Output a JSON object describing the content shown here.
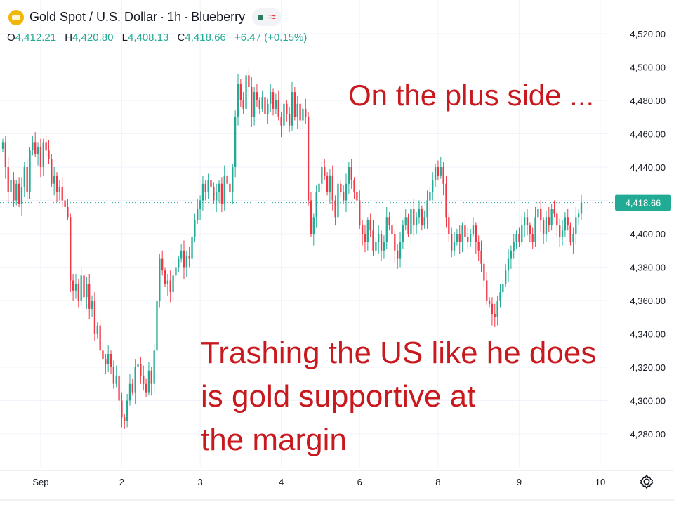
{
  "header": {
    "title_symbol": "Gold Spot / U.S. Dollar",
    "interval": "1h",
    "source": "Blueberry"
  },
  "ohlc": {
    "o_label": "O",
    "o": "4,412.21",
    "h_label": "H",
    "h": "4,420.80",
    "l_label": "L",
    "l": "4,408.13",
    "c_label": "C",
    "c": "4,418.66",
    "change": "+6.47 (+0.15%)"
  },
  "annotations": {
    "top": "On the plus side ...",
    "bottom_line1": "Trashing the US like he does",
    "bottom_line2": "is gold supportive at",
    "bottom_line3": "the margin"
  },
  "colors": {
    "up": "#22ab94",
    "down": "#f23645",
    "annotation": "#c8191e",
    "price_tag": "#22ab94"
  },
  "icons": {
    "settings": "gear-icon",
    "logo": "gold-logo-icon"
  },
  "chart_data": {
    "type": "candlestick",
    "title": "Gold Spot / U.S. Dollar · 1h · Blueberry",
    "xlabel": "",
    "ylabel": "",
    "ylim": [
      4265,
      4530
    ],
    "grid": true,
    "y_ticks": [
      "4,520.00",
      "4,500.00",
      "4,480.00",
      "4,460.00",
      "4,440.00",
      "4,420.00",
      "4,400.00",
      "4,380.00",
      "4,360.00",
      "4,340.00",
      "4,320.00",
      "4,300.00",
      "4,280.00"
    ],
    "y_tick_values": [
      4520,
      4500,
      4480,
      4460,
      4440,
      4420,
      4400,
      4380,
      4360,
      4340,
      4320,
      4300,
      4280
    ],
    "x_ticks": [
      {
        "label": "Sep",
        "index": 14
      },
      {
        "label": "2",
        "index": 44
      },
      {
        "label": "3",
        "index": 73
      },
      {
        "label": "4",
        "index": 103
      },
      {
        "label": "6",
        "index": 132
      },
      {
        "label": "8",
        "index": 161
      },
      {
        "label": "9",
        "index": 191
      },
      {
        "label": "10",
        "index": 221
      }
    ],
    "last_price": {
      "label": "4,418.66",
      "value": 4418.66
    },
    "candles_close": [
      4455,
      4440,
      4425,
      4432,
      4420,
      4430,
      4418,
      4428,
      4440,
      4425,
      4450,
      4455,
      4448,
      4452,
      4440,
      4455,
      4450,
      4445,
      4430,
      4435,
      4425,
      4428,
      4420,
      4416,
      4410,
      4372,
      4366,
      4370,
      4360,
      4375,
      4362,
      4370,
      4355,
      4360,
      4340,
      4345,
      4330,
      4325,
      4322,
      4328,
      4320,
      4310,
      4315,
      4300,
      4290,
      4288,
      4300,
      4310,
      4305,
      4320,
      4322,
      4315,
      4310,
      4305,
      4318,
      4310,
      4330,
      4360,
      4385,
      4378,
      4370,
      4372,
      4365,
      4375,
      4380,
      4385,
      4390,
      4380,
      4387,
      4385,
      4398,
      4408,
      4415,
      4420,
      4430,
      4425,
      4432,
      4428,
      4420,
      4425,
      4430,
      4418,
      4435,
      4430,
      4425,
      4440,
      4470,
      4490,
      4480,
      4475,
      4495,
      4488,
      4470,
      4485,
      4480,
      4475,
      4482,
      4472,
      4478,
      4485,
      4475,
      4480,
      4470,
      4465,
      4478,
      4472,
      4465,
      4485,
      4470,
      4478,
      4468,
      4475,
      4470,
      4420,
      4400,
      4410,
      4425,
      4430,
      4440,
      4435,
      4425,
      4435,
      4420,
      4410,
      4430,
      4425,
      4420,
      4430,
      4440,
      4432,
      4425,
      4420,
      4405,
      4400,
      4395,
      4408,
      4402,
      4390,
      4395,
      4400,
      4390,
      4395,
      4410,
      4405,
      4400,
      4390,
      4385,
      4395,
      4405,
      4410,
      4400,
      4415,
      4405,
      4410,
      4415,
      4405,
      4410,
      4420,
      4425,
      4432,
      4440,
      4435,
      4440,
      4430,
      4410,
      4400,
      4390,
      4395,
      4400,
      4395,
      4405,
      4398,
      4395,
      4400,
      4405,
      4395,
      4390,
      4382,
      4372,
      4360,
      4358,
      4352,
      4350,
      4360,
      4365,
      4370,
      4378,
      4385,
      4390,
      4395,
      4400,
      4395,
      4405,
      4410,
      4405,
      4400,
      4395,
      4410,
      4415,
      4408,
      4400,
      4410,
      4405,
      4415,
      4412,
      4405,
      4398,
      4402,
      4410,
      4405,
      4395,
      4400,
      4410,
      4412,
      4418.66
    ]
  }
}
